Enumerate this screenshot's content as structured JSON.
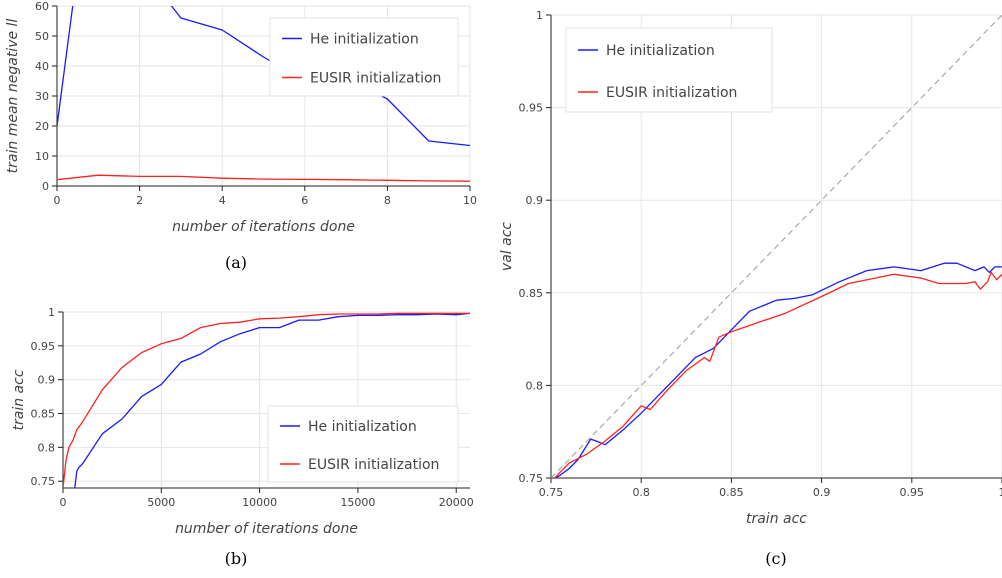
{
  "colors": {
    "he": "#1a1aff",
    "eusir": "#ff2020",
    "identity": "#aaaaaa",
    "grid": "#e6e6e6"
  },
  "chart_data": [
    {
      "id": "a",
      "type": "line",
      "caption": "(a)",
      "xlabel": "number of iterations done",
      "ylabel": "train mean negative ll",
      "xlim": [
        0,
        10
      ],
      "ylim": [
        0,
        60
      ],
      "xticks": [
        0,
        2,
        4,
        6,
        8,
        10
      ],
      "yticks": [
        0,
        10,
        20,
        30,
        40,
        50,
        60
      ],
      "grid": true,
      "legend_position": "top-right",
      "series": [
        {
          "name": "He initialization",
          "color_key": "he",
          "x": [
            0,
            0.4,
            2.2,
            3,
            4,
            5,
            6,
            7,
            8,
            9,
            10
          ],
          "y": [
            20,
            62,
            70,
            56,
            52,
            43,
            35,
            36,
            29,
            15,
            13.5
          ]
        },
        {
          "name": "EUSIR initialization",
          "color_key": "eusir",
          "x": [
            0,
            1,
            2,
            3,
            4,
            5,
            6,
            7,
            8,
            9,
            10
          ],
          "y": [
            2.1,
            3.6,
            3.2,
            3.2,
            2.6,
            2.3,
            2.2,
            2.1,
            1.9,
            1.7,
            1.6
          ]
        }
      ]
    },
    {
      "id": "b",
      "type": "line",
      "caption": "(b)",
      "xlabel": "number of iterations done",
      "ylabel": "train acc",
      "xlim": [
        0,
        20700
      ],
      "ylim": [
        0.74,
        1.0
      ],
      "xticks": [
        0,
        5000,
        10000,
        15000,
        20000
      ],
      "yticks": [
        0.75,
        0.8,
        0.85,
        0.9,
        0.95,
        1
      ],
      "ytick_labels": [
        "0.75",
        "0.8",
        "0.85",
        "0.9",
        "0.95",
        "1"
      ],
      "grid": true,
      "legend_position": "bottom-right",
      "series": [
        {
          "name": "He initialization",
          "color_key": "he",
          "x": [
            600,
            700,
            800,
            1000,
            2000,
            3000,
            4000,
            5000,
            6000,
            7000,
            8000,
            9000,
            10000,
            11000,
            12000,
            13000,
            14000,
            15000,
            16000,
            17000,
            18000,
            19000,
            20000,
            20700
          ],
          "y": [
            0.74,
            0.765,
            0.77,
            0.776,
            0.82,
            0.842,
            0.875,
            0.893,
            0.926,
            0.938,
            0.956,
            0.968,
            0.977,
            0.977,
            0.988,
            0.988,
            0.993,
            0.995,
            0.995,
            0.996,
            0.996,
            0.997,
            0.996,
            0.998
          ]
        },
        {
          "name": "EUSIR initialization",
          "color_key": "eusir",
          "x": [
            0,
            150,
            300,
            500,
            700,
            1000,
            2000,
            3000,
            4000,
            5000,
            6000,
            7000,
            8000,
            9000,
            10000,
            11000,
            12000,
            13000,
            14000,
            15000,
            16000,
            17000,
            18000,
            19000,
            20000,
            20700
          ],
          "y": [
            0.74,
            0.78,
            0.8,
            0.81,
            0.826,
            0.838,
            0.885,
            0.918,
            0.94,
            0.953,
            0.961,
            0.977,
            0.983,
            0.985,
            0.99,
            0.991,
            0.993,
            0.996,
            0.997,
            0.997,
            0.997,
            0.998,
            0.998,
            0.998,
            0.998,
            0.998
          ]
        }
      ]
    },
    {
      "id": "c",
      "type": "line",
      "caption": "(c)",
      "xlabel": "train acc",
      "ylabel": "val acc",
      "xlim": [
        0.75,
        1.0
      ],
      "ylim": [
        0.75,
        1.0
      ],
      "xticks": [
        0.75,
        0.8,
        0.85,
        0.9,
        0.95,
        1
      ],
      "xtick_labels": [
        "0.75",
        "0.8",
        "0.85",
        "0.9",
        "0.95",
        "1"
      ],
      "yticks": [
        0.75,
        0.8,
        0.85,
        0.9,
        0.95,
        1
      ],
      "ytick_labels": [
        "0.75",
        "0.8",
        "0.85",
        "0.9",
        "0.95",
        "1"
      ],
      "grid": true,
      "legend_position": "top-left",
      "identity_line": true,
      "series": [
        {
          "name": "He initialization",
          "color_key": "he",
          "x": [
            0.75,
            0.76,
            0.765,
            0.772,
            0.775,
            0.78,
            0.79,
            0.8,
            0.81,
            0.82,
            0.83,
            0.84,
            0.85,
            0.86,
            0.875,
            0.885,
            0.895,
            0.91,
            0.925,
            0.94,
            0.955,
            0.968,
            0.975,
            0.985,
            0.99,
            0.993,
            0.996,
            1.0
          ],
          "y": [
            0.748,
            0.755,
            0.76,
            0.771,
            0.77,
            0.768,
            0.776,
            0.785,
            0.795,
            0.805,
            0.815,
            0.82,
            0.83,
            0.84,
            0.846,
            0.847,
            0.849,
            0.856,
            0.862,
            0.864,
            0.862,
            0.866,
            0.866,
            0.862,
            0.864,
            0.861,
            0.864,
            0.864
          ]
        },
        {
          "name": "EUSIR initialization",
          "color_key": "eusir",
          "x": [
            0.75,
            0.76,
            0.77,
            0.78,
            0.79,
            0.8,
            0.805,
            0.815,
            0.825,
            0.835,
            0.838,
            0.843,
            0.85,
            0.865,
            0.88,
            0.9,
            0.915,
            0.93,
            0.94,
            0.955,
            0.965,
            0.98,
            0.985,
            0.988,
            0.992,
            0.994,
            0.997,
            1.0
          ],
          "y": [
            0.748,
            0.758,
            0.763,
            0.77,
            0.778,
            0.789,
            0.787,
            0.798,
            0.808,
            0.815,
            0.813,
            0.826,
            0.829,
            0.834,
            0.839,
            0.848,
            0.855,
            0.858,
            0.86,
            0.858,
            0.855,
            0.855,
            0.856,
            0.852,
            0.856,
            0.861,
            0.857,
            0.86
          ]
        }
      ]
    }
  ]
}
